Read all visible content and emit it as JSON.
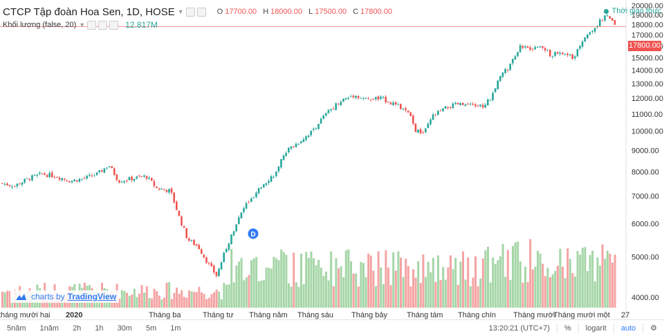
{
  "header": {
    "symbol_title": "CTCP Tập đoàn Hoa Sen, 1D, HOSE",
    "ohlc": {
      "o_label": "O",
      "o_value": "17700.00",
      "h_label": "H",
      "h_value": "18000.00",
      "l_label": "L",
      "l_value": "17500.00",
      "c_label": "C",
      "c_value": "17800.00"
    },
    "volume_label": "Khối lượng (false, 20)",
    "volume_value": "12.817M",
    "realtime_label": "Thời gian thực"
  },
  "colors": {
    "up": "#26a69a",
    "down": "#ef5350",
    "vol_up": "#a5d6a7",
    "vol_down": "#f5a3a3"
  },
  "logo": {
    "text": "charts by",
    "brand": "TradingView"
  },
  "toolbar": {
    "ranges": [
      "5năm",
      "1năm",
      "2h",
      "1h",
      "30m",
      "5m",
      "1m"
    ],
    "time": "13:20:21 (UTC+7)",
    "percent": "%",
    "log": "logarit",
    "auto": "auto",
    "settings_icon": "gear-icon"
  },
  "last_price_tag": "17800.00",
  "event_marker": "D",
  "chart_data": {
    "type": "candlestick",
    "y_ticks": [
      4000,
      5000,
      6000,
      7000,
      8000,
      9000,
      10000,
      11000,
      12000,
      13000,
      14000,
      15000,
      16000,
      17000,
      18000,
      19000,
      20000
    ],
    "y_tick_labels": [
      "4000.00",
      "5000.00",
      "6000.00",
      "7000.00",
      "8000.00",
      "9000.00",
      "10000.00",
      "11000.00",
      "12000.00",
      "13000.00",
      "14000.00",
      "15000.00",
      "16000.00",
      "17000.00",
      "18000.00",
      "19000.00",
      "20000.00"
    ],
    "x_labels": [
      "tháng mười hai",
      "2020",
      "Tháng ba",
      "Tháng tư",
      "Tháng năm",
      "Tháng sáu",
      "Tháng bảy",
      "Tháng tám",
      "Tháng chín",
      "Tháng mười",
      "Tháng mười một",
      "27"
    ],
    "last_price": 17800,
    "close_path": [
      [
        0,
        7500
      ],
      [
        20,
        7400
      ],
      [
        40,
        7700
      ],
      [
        60,
        7900
      ],
      [
        80,
        7800
      ],
      [
        100,
        7600
      ],
      [
        120,
        7700
      ],
      [
        140,
        7900
      ],
      [
        156,
        8300
      ],
      [
        170,
        7600
      ],
      [
        190,
        7700
      ],
      [
        210,
        7800
      ],
      [
        225,
        7300
      ],
      [
        245,
        7200
      ],
      [
        258,
        6200
      ],
      [
        270,
        5500
      ],
      [
        285,
        5300
      ],
      [
        300,
        4800
      ],
      [
        312,
        4500
      ],
      [
        325,
        5200
      ],
      [
        340,
        6000
      ],
      [
        355,
        6700
      ],
      [
        365,
        6900
      ],
      [
        380,
        7500
      ],
      [
        400,
        8000
      ],
      [
        410,
        8900
      ],
      [
        430,
        9400
      ],
      [
        450,
        10000
      ],
      [
        470,
        11000
      ],
      [
        490,
        11800
      ],
      [
        510,
        12200
      ],
      [
        530,
        11900
      ],
      [
        550,
        12000
      ],
      [
        570,
        11600
      ],
      [
        590,
        11000
      ],
      [
        600,
        10000
      ],
      [
        612,
        9900
      ],
      [
        625,
        10900
      ],
      [
        645,
        11400
      ],
      [
        660,
        11600
      ],
      [
        680,
        11500
      ],
      [
        700,
        11500
      ],
      [
        712,
        12300
      ],
      [
        720,
        13500
      ],
      [
        735,
        14200
      ],
      [
        750,
        16000
      ],
      [
        765,
        15700
      ],
      [
        780,
        16000
      ],
      [
        795,
        15200
      ],
      [
        810,
        15400
      ],
      [
        828,
        15000
      ],
      [
        840,
        16500
      ],
      [
        855,
        17500
      ],
      [
        870,
        18600
      ],
      [
        878,
        19000
      ],
      [
        888,
        17800
      ]
    ]
  }
}
